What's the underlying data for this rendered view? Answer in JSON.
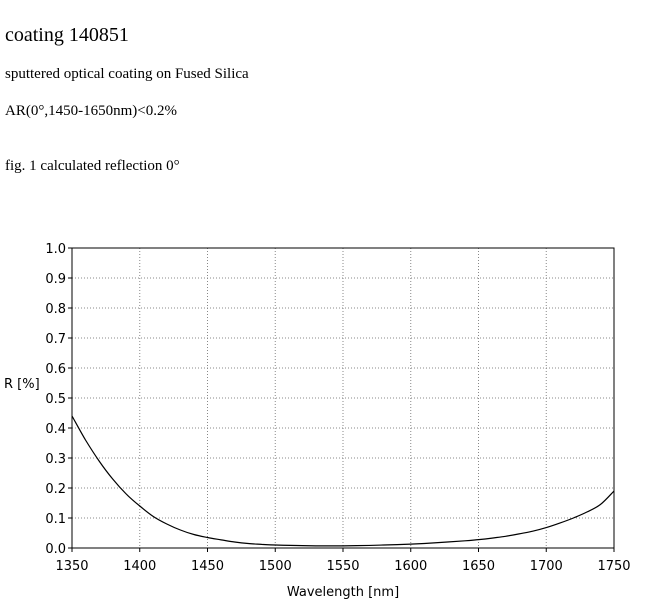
{
  "document": {
    "title": "coating 140851",
    "subtitle": "sputtered optical coating on Fused Silica",
    "spec": "AR(0°,1450-1650nm)<0.2%",
    "caption": "fig. 1 calculated reflection 0°"
  },
  "chart_data": {
    "type": "line",
    "xlabel": "Wavelength [nm]",
    "ylabel": "R [%]",
    "xlim": [
      1350,
      1750
    ],
    "ylim": [
      0,
      1.0
    ],
    "x_ticks": [
      1350,
      1400,
      1450,
      1500,
      1550,
      1600,
      1650,
      1700,
      1750
    ],
    "y_ticks": [
      "0.0",
      "0.1",
      "0.2",
      "0.3",
      "0.4",
      "0.5",
      "0.6",
      "0.7",
      "0.8",
      "0.9",
      "1.0"
    ],
    "grid": true,
    "series": [
      {
        "color": "#000000",
        "x": [
          1350,
          1360,
          1370,
          1380,
          1390,
          1400,
          1410,
          1420,
          1430,
          1440,
          1450,
          1460,
          1470,
          1480,
          1490,
          1500,
          1520,
          1540,
          1560,
          1580,
          1600,
          1620,
          1640,
          1650,
          1660,
          1670,
          1680,
          1690,
          1700,
          1710,
          1720,
          1730,
          1740,
          1750
        ],
        "y": [
          0.44,
          0.36,
          0.29,
          0.23,
          0.18,
          0.14,
          0.105,
          0.08,
          0.06,
          0.045,
          0.035,
          0.027,
          0.02,
          0.015,
          0.012,
          0.01,
          0.008,
          0.007,
          0.008,
          0.01,
          0.013,
          0.018,
          0.024,
          0.028,
          0.033,
          0.039,
          0.047,
          0.056,
          0.068,
          0.083,
          0.1,
          0.12,
          0.145,
          0.19
        ]
      }
    ]
  }
}
